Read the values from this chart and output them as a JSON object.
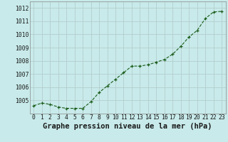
{
  "x": [
    0,
    1,
    2,
    3,
    4,
    5,
    6,
    7,
    8,
    9,
    10,
    11,
    12,
    13,
    14,
    15,
    16,
    17,
    18,
    19,
    20,
    21,
    22,
    23
  ],
  "y": [
    1004.6,
    1004.8,
    1004.7,
    1004.5,
    1004.4,
    1004.4,
    1004.4,
    1004.9,
    1005.6,
    1006.1,
    1006.6,
    1007.1,
    1007.6,
    1007.6,
    1007.7,
    1007.9,
    1008.1,
    1008.5,
    1009.1,
    1009.8,
    1010.3,
    1011.2,
    1011.7,
    1011.75
  ],
  "ylim": [
    1004.0,
    1012.5
  ],
  "yticks": [
    1005,
    1006,
    1007,
    1008,
    1009,
    1010,
    1011,
    1012
  ],
  "xlabel": "Graphe pression niveau de la mer (hPa)",
  "line_color": "#1a5c1a",
  "marker_color": "#1a5c1a",
  "bg_color": "#c8eaea",
  "grid_color": "#b0c8c8",
  "tick_fontsize": 5.8,
  "xlabel_fontsize": 7.5
}
